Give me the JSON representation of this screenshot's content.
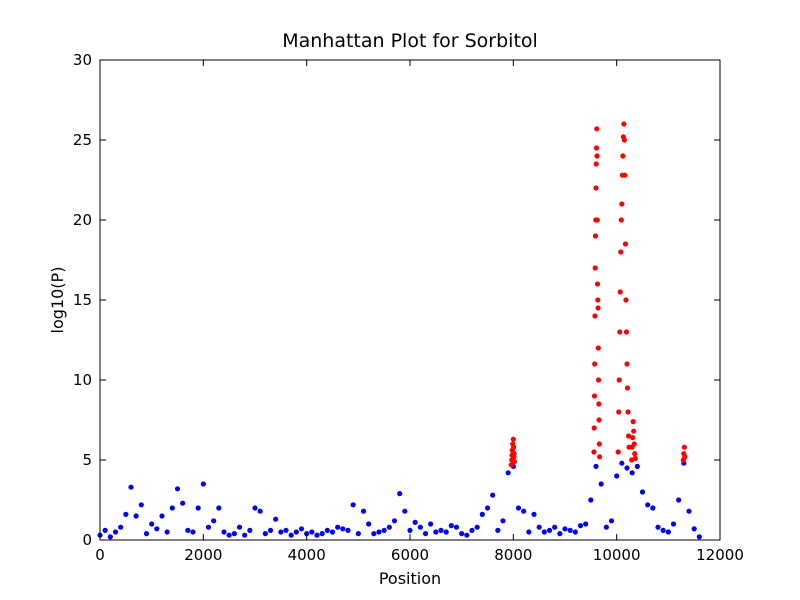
{
  "chart_data": {
    "type": "scatter",
    "title": "Manhattan Plot for Sorbitol",
    "x_label": "Position",
    "y_label": "log10(P)",
    "xlim": [
      0,
      12000
    ],
    "ylim": [
      0,
      30
    ],
    "xticks": [
      0,
      2000,
      4000,
      6000,
      8000,
      10000,
      12000
    ],
    "yticks": [
      0,
      5,
      10,
      15,
      20,
      25,
      30
    ],
    "grid": false,
    "series": [
      {
        "color": "#0000ff",
        "x": [
          0,
          100,
          200,
          300,
          400,
          500,
          600,
          700,
          800,
          900,
          1000,
          1100,
          1200,
          1300,
          1400,
          1500,
          1600,
          1700,
          1800,
          1900,
          2000,
          2100,
          2200,
          2300,
          2400,
          2500,
          2600,
          2700,
          2800,
          2900,
          3000,
          3100,
          3200,
          3300,
          3400,
          3500,
          3600,
          3700,
          3800,
          3900,
          4000,
          4100,
          4200,
          4300,
          4400,
          4500,
          4600,
          4700,
          4800,
          4900,
          5000,
          5100,
          5200,
          5300,
          5400,
          5500,
          5600,
          5700,
          5800,
          5900,
          6000,
          6100,
          6200,
          6300,
          6400,
          6500,
          6600,
          6700,
          6800,
          6900,
          7000,
          7100,
          7200,
          7300,
          7400,
          7500,
          7600,
          7700,
          7800,
          7900,
          8000,
          8100,
          8200,
          8300,
          8400,
          8500,
          8600,
          8700,
          8800,
          8900,
          9000,
          9100,
          9200,
          9300,
          9400,
          9500,
          9600,
          9700,
          9800,
          9900,
          10000,
          10100,
          10200,
          10300,
          10400,
          10500,
          10600,
          10700,
          10800,
          10900,
          11000,
          11100,
          11200,
          11300,
          11400,
          11500,
          11600
        ],
        "values": [
          0.3,
          0.6,
          0.2,
          0.5,
          0.8,
          1.6,
          3.3,
          1.5,
          2.2,
          0.4,
          1.0,
          0.7,
          1.5,
          0.5,
          2.0,
          3.2,
          2.3,
          0.6,
          0.5,
          2.0,
          3.5,
          0.8,
          1.2,
          2.0,
          0.5,
          0.3,
          0.4,
          0.8,
          0.3,
          0.6,
          2.0,
          1.8,
          0.4,
          0.6,
          1.3,
          0.5,
          0.6,
          0.3,
          0.5,
          0.7,
          0.4,
          0.5,
          0.3,
          0.4,
          0.6,
          0.5,
          0.8,
          0.7,
          0.6,
          2.2,
          0.4,
          1.8,
          1.0,
          0.4,
          0.5,
          0.6,
          0.8,
          1.2,
          2.9,
          1.8,
          0.6,
          1.1,
          0.8,
          0.4,
          1.0,
          0.5,
          0.6,
          0.5,
          0.9,
          0.8,
          0.4,
          0.3,
          0.6,
          0.8,
          1.6,
          2.0,
          2.8,
          0.6,
          1.2,
          4.2,
          4.6,
          2.0,
          1.8,
          0.5,
          1.6,
          0.8,
          0.5,
          0.6,
          0.8,
          0.4,
          0.7,
          0.6,
          0.5,
          0.9,
          1.0,
          2.5,
          4.6,
          3.5,
          0.8,
          1.2,
          4.0,
          4.8,
          4.5,
          4.2,
          4.6,
          3.0,
          2.2,
          2.0,
          0.8,
          0.6,
          0.5,
          1.0,
          2.5,
          4.8,
          1.8,
          0.7,
          0.2
        ]
      },
      {
        "color": "#ff0000",
        "x": [
          7960,
          7970,
          7975,
          7980,
          7990,
          8000,
          8005,
          8010,
          8015,
          8020,
          9560,
          9565,
          9570,
          9575,
          9580,
          9585,
          9590,
          9595,
          9600,
          9605,
          9610,
          9615,
          9620,
          9625,
          9630,
          9635,
          9640,
          9645,
          9650,
          9655,
          9660,
          9665,
          9670,
          10030,
          10040,
          10050,
          10060,
          10070,
          10080,
          10090,
          10100,
          10110,
          10120,
          10130,
          10140,
          10150,
          10160,
          10170,
          10180,
          10190,
          10200,
          10210,
          10220,
          10230,
          10240,
          10290,
          10300,
          10310,
          10320,
          10330,
          10340,
          10350,
          10360,
          11290,
          11300,
          11310,
          11320
        ],
        "values": [
          4.7,
          5.0,
          5.3,
          5.6,
          6.0,
          6.3,
          5.8,
          5.2,
          5.4,
          4.9,
          5.5,
          7,
          9,
          11,
          14,
          17,
          19,
          20,
          22,
          23.5,
          24.5,
          25.7,
          24,
          20,
          16,
          15,
          14.5,
          12,
          10,
          8.5,
          7.5,
          6,
          5.2,
          5.5,
          8,
          10,
          13,
          15.5,
          18,
          20,
          21,
          22.8,
          24,
          25.2,
          26,
          25,
          22.8,
          18.5,
          15,
          13,
          11,
          9.5,
          8,
          6.5,
          5.8,
          5,
          5.8,
          6.4,
          7.4,
          6.8,
          6,
          5.4,
          5.1,
          5,
          5.4,
          5.8,
          5.2
        ]
      }
    ]
  }
}
